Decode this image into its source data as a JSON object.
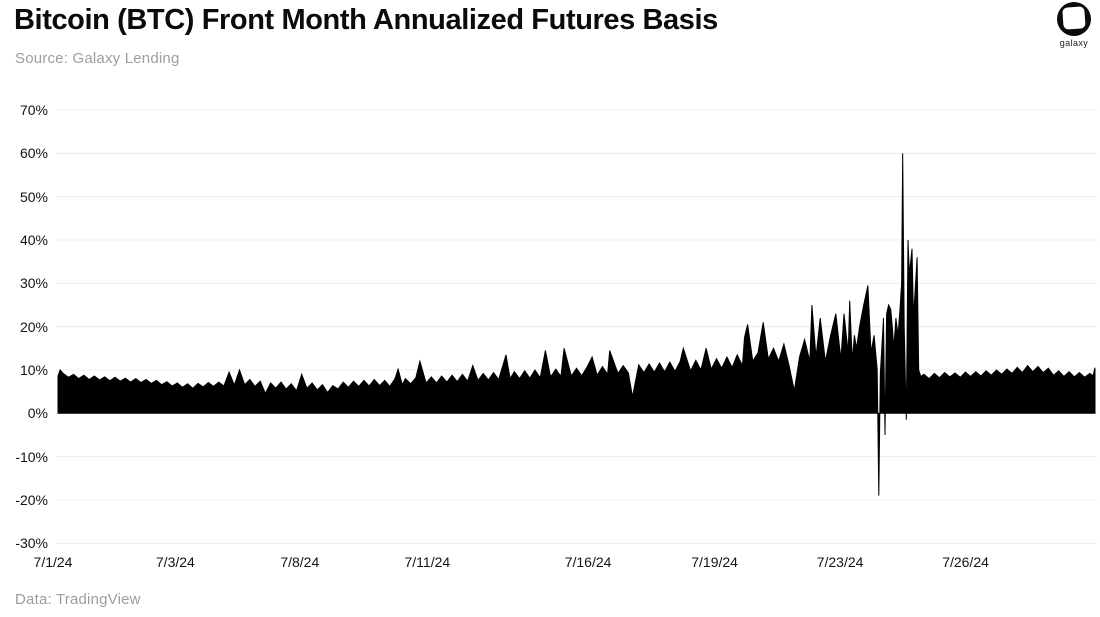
{
  "header": {
    "title": "Bitcoin (BTC) Front Month Annualized Futures Basis",
    "source": "Source: Galaxy Lending"
  },
  "logo": {
    "label": "galaxy"
  },
  "footer": {
    "data_note": "Data: TradingView"
  },
  "colors": {
    "series_fill": "#000000",
    "gridline": "#ececec",
    "axis_text": "#141414",
    "muted_text": "#9d9d9d",
    "title_text": "#0b0b0b"
  },
  "chart_data": {
    "type": "area",
    "title": "Bitcoin (BTC) Front Month Annualized Futures Basis",
    "xlabel": "",
    "ylabel": "",
    "ylim": [
      -30,
      70
    ],
    "grid": "horizontal",
    "legend": "none",
    "yticks": [
      {
        "value": 70,
        "label": "70%"
      },
      {
        "value": 60,
        "label": "60%"
      },
      {
        "value": 50,
        "label": "50%"
      },
      {
        "value": 40,
        "label": "40%"
      },
      {
        "value": 30,
        "label": "30%"
      },
      {
        "value": 20,
        "label": "20%"
      },
      {
        "value": 10,
        "label": "10%"
      },
      {
        "value": 0,
        "label": "0%"
      },
      {
        "value": -10,
        "label": "-10%"
      },
      {
        "value": -20,
        "label": "-20%"
      },
      {
        "value": -30,
        "label": "-30%"
      }
    ],
    "xticks": [
      {
        "label": "7/1/24",
        "pos": 0.0
      },
      {
        "label": "7/3/24",
        "pos": 0.118
      },
      {
        "label": "7/8/24",
        "pos": 0.238
      },
      {
        "label": "7/11/24",
        "pos": 0.361
      },
      {
        "label": "7/16/24",
        "pos": 0.516
      },
      {
        "label": "7/19/24",
        "pos": 0.638
      },
      {
        "label": "7/23/24",
        "pos": 0.759
      },
      {
        "label": "7/26/24",
        "pos": 0.88
      }
    ],
    "x_encoding": "fraction of plotted date range (7/1/24 through end of series)",
    "y_unit": "percent annualized basis",
    "points": [
      [
        0.0,
        8.6
      ],
      [
        0.002,
        10.0
      ],
      [
        0.005,
        9.2
      ],
      [
        0.01,
        8.3
      ],
      [
        0.015,
        9.0
      ],
      [
        0.02,
        8.0
      ],
      [
        0.025,
        8.8
      ],
      [
        0.03,
        7.8
      ],
      [
        0.035,
        8.6
      ],
      [
        0.04,
        7.7
      ],
      [
        0.045,
        8.4
      ],
      [
        0.05,
        7.5
      ],
      [
        0.055,
        8.3
      ],
      [
        0.06,
        7.4
      ],
      [
        0.065,
        8.1
      ],
      [
        0.07,
        7.2
      ],
      [
        0.075,
        8.0
      ],
      [
        0.08,
        7.1
      ],
      [
        0.085,
        7.8
      ],
      [
        0.09,
        6.9
      ],
      [
        0.095,
        7.6
      ],
      [
        0.1,
        6.6
      ],
      [
        0.105,
        7.3
      ],
      [
        0.11,
        6.3
      ],
      [
        0.115,
        7.0
      ],
      [
        0.12,
        6.0
      ],
      [
        0.125,
        6.8
      ],
      [
        0.13,
        5.8
      ],
      [
        0.135,
        6.9
      ],
      [
        0.14,
        6.1
      ],
      [
        0.145,
        7.1
      ],
      [
        0.15,
        6.2
      ],
      [
        0.155,
        7.2
      ],
      [
        0.16,
        6.3
      ],
      [
        0.165,
        9.5
      ],
      [
        0.17,
        6.5
      ],
      [
        0.175,
        10.0
      ],
      [
        0.18,
        6.6
      ],
      [
        0.185,
        7.8
      ],
      [
        0.19,
        6.2
      ],
      [
        0.195,
        7.4
      ],
      [
        0.2,
        4.6
      ],
      [
        0.205,
        7.0
      ],
      [
        0.21,
        5.8
      ],
      [
        0.215,
        7.2
      ],
      [
        0.22,
        5.6
      ],
      [
        0.225,
        6.8
      ],
      [
        0.23,
        5.2
      ],
      [
        0.235,
        9.0
      ],
      [
        0.24,
        5.8
      ],
      [
        0.245,
        7.0
      ],
      [
        0.25,
        5.4
      ],
      [
        0.255,
        6.6
      ],
      [
        0.26,
        4.8
      ],
      [
        0.265,
        6.4
      ],
      [
        0.27,
        5.6
      ],
      [
        0.275,
        7.2
      ],
      [
        0.28,
        6.0
      ],
      [
        0.285,
        7.4
      ],
      [
        0.29,
        6.2
      ],
      [
        0.295,
        7.6
      ],
      [
        0.3,
        6.3
      ],
      [
        0.305,
        7.8
      ],
      [
        0.31,
        6.4
      ],
      [
        0.315,
        7.6
      ],
      [
        0.32,
        6.2
      ],
      [
        0.325,
        8.0
      ],
      [
        0.328,
        10.2
      ],
      [
        0.332,
        6.6
      ],
      [
        0.335,
        8.0
      ],
      [
        0.34,
        6.8
      ],
      [
        0.345,
        8.2
      ],
      [
        0.349,
        12.0
      ],
      [
        0.355,
        7.0
      ],
      [
        0.36,
        8.4
      ],
      [
        0.365,
        7.0
      ],
      [
        0.37,
        8.6
      ],
      [
        0.375,
        7.2
      ],
      [
        0.38,
        8.8
      ],
      [
        0.385,
        7.3
      ],
      [
        0.39,
        9.0
      ],
      [
        0.395,
        7.4
      ],
      [
        0.4,
        11.0
      ],
      [
        0.405,
        7.6
      ],
      [
        0.41,
        9.2
      ],
      [
        0.415,
        7.7
      ],
      [
        0.42,
        9.4
      ],
      [
        0.425,
        7.8
      ],
      [
        0.432,
        13.5
      ],
      [
        0.436,
        8.0
      ],
      [
        0.44,
        9.6
      ],
      [
        0.445,
        8.0
      ],
      [
        0.45,
        9.8
      ],
      [
        0.455,
        8.1
      ],
      [
        0.46,
        10.0
      ],
      [
        0.465,
        8.2
      ],
      [
        0.47,
        14.5
      ],
      [
        0.475,
        8.4
      ],
      [
        0.48,
        10.2
      ],
      [
        0.485,
        8.5
      ],
      [
        0.488,
        15.0
      ],
      [
        0.495,
        8.6
      ],
      [
        0.5,
        10.4
      ],
      [
        0.505,
        8.7
      ],
      [
        0.51,
        10.6
      ],
      [
        0.515,
        13.0
      ],
      [
        0.52,
        8.8
      ],
      [
        0.525,
        10.8
      ],
      [
        0.53,
        9.0
      ],
      [
        0.532,
        14.5
      ],
      [
        0.54,
        9.2
      ],
      [
        0.545,
        11.0
      ],
      [
        0.55,
        9.3
      ],
      [
        0.554,
        3.8
      ],
      [
        0.56,
        11.2
      ],
      [
        0.565,
        9.4
      ],
      [
        0.57,
        11.4
      ],
      [
        0.575,
        9.5
      ],
      [
        0.58,
        11.6
      ],
      [
        0.585,
        9.6
      ],
      [
        0.59,
        11.8
      ],
      [
        0.595,
        9.7
      ],
      [
        0.6,
        12.0
      ],
      [
        0.603,
        15.0
      ],
      [
        0.61,
        9.8
      ],
      [
        0.615,
        12.2
      ],
      [
        0.62,
        10.0
      ],
      [
        0.625,
        15.0
      ],
      [
        0.63,
        10.2
      ],
      [
        0.635,
        12.6
      ],
      [
        0.64,
        10.4
      ],
      [
        0.645,
        13.0
      ],
      [
        0.65,
        10.6
      ],
      [
        0.655,
        13.5
      ],
      [
        0.66,
        11.0
      ],
      [
        0.662,
        17.5
      ],
      [
        0.665,
        20.5
      ],
      [
        0.67,
        12.0
      ],
      [
        0.675,
        14.0
      ],
      [
        0.68,
        21.0
      ],
      [
        0.685,
        12.5
      ],
      [
        0.69,
        15.0
      ],
      [
        0.695,
        12.0
      ],
      [
        0.7,
        16.0
      ],
      [
        0.705,
        11.0
      ],
      [
        0.71,
        5.2
      ],
      [
        0.715,
        13.0
      ],
      [
        0.72,
        17.0
      ],
      [
        0.725,
        12.0
      ],
      [
        0.727,
        25.0
      ],
      [
        0.731,
        13.0
      ],
      [
        0.735,
        22.0
      ],
      [
        0.74,
        12.0
      ],
      [
        0.745,
        18.0
      ],
      [
        0.75,
        23.0
      ],
      [
        0.755,
        12.5
      ],
      [
        0.758,
        23.0
      ],
      [
        0.762,
        14.0
      ],
      [
        0.7635,
        26.0
      ],
      [
        0.766,
        12.0
      ],
      [
        0.768,
        18.0
      ],
      [
        0.77,
        15.0
      ],
      [
        0.773,
        20.0
      ],
      [
        0.777,
        25.0
      ],
      [
        0.781,
        29.5
      ],
      [
        0.784,
        14.0
      ],
      [
        0.787,
        18.0
      ],
      [
        0.79,
        10.0
      ],
      [
        0.7915,
        -19.0
      ],
      [
        0.793,
        9.0
      ],
      [
        0.796,
        22.0
      ],
      [
        0.7975,
        -5.0
      ],
      [
        0.799,
        23.0
      ],
      [
        0.801,
        25.0
      ],
      [
        0.803,
        24.0
      ],
      [
        0.8045,
        20.0
      ],
      [
        0.806,
        15.0
      ],
      [
        0.808,
        22.0
      ],
      [
        0.81,
        18.0
      ],
      [
        0.812,
        24.0
      ],
      [
        0.8135,
        30.0
      ],
      [
        0.8146,
        60.0
      ],
      [
        0.816,
        20.0
      ],
      [
        0.818,
        -1.5
      ],
      [
        0.8197,
        40.0
      ],
      [
        0.821,
        32.0
      ],
      [
        0.8235,
        38.0
      ],
      [
        0.825,
        22.0
      ],
      [
        0.8284,
        36.0
      ],
      [
        0.83,
        10.0
      ],
      [
        0.832,
        8.5
      ],
      [
        0.835,
        9.0
      ],
      [
        0.84,
        8.0
      ],
      [
        0.845,
        9.2
      ],
      [
        0.85,
        8.2
      ],
      [
        0.855,
        9.4
      ],
      [
        0.86,
        8.4
      ],
      [
        0.865,
        9.3
      ],
      [
        0.87,
        8.3
      ],
      [
        0.875,
        9.5
      ],
      [
        0.88,
        8.5
      ],
      [
        0.885,
        9.6
      ],
      [
        0.89,
        8.6
      ],
      [
        0.895,
        9.8
      ],
      [
        0.9,
        8.8
      ],
      [
        0.905,
        10.0
      ],
      [
        0.91,
        9.0
      ],
      [
        0.915,
        10.2
      ],
      [
        0.92,
        9.2
      ],
      [
        0.925,
        10.6
      ],
      [
        0.93,
        9.4
      ],
      [
        0.935,
        11.0
      ],
      [
        0.94,
        9.6
      ],
      [
        0.945,
        10.8
      ],
      [
        0.95,
        9.4
      ],
      [
        0.955,
        10.4
      ],
      [
        0.96,
        8.8
      ],
      [
        0.965,
        9.8
      ],
      [
        0.97,
        8.5
      ],
      [
        0.975,
        9.6
      ],
      [
        0.98,
        8.4
      ],
      [
        0.985,
        9.4
      ],
      [
        0.99,
        8.3
      ],
      [
        0.995,
        9.2
      ],
      [
        0.998,
        8.6
      ],
      [
        1.0,
        10.5
      ]
    ]
  }
}
